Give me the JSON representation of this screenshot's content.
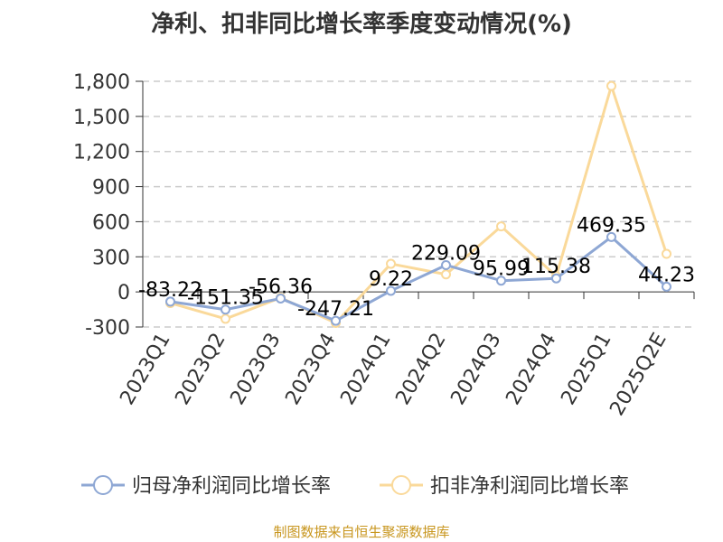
{
  "chart_data": {
    "type": "line",
    "title": "净利、扣非同比增长率季度变动情况(%)",
    "categories": [
      "2023Q1",
      "2023Q2",
      "2023Q3",
      "2023Q4",
      "2024Q1",
      "2024Q2",
      "2024Q3",
      "2024Q4",
      "2025Q1",
      "2025Q2E"
    ],
    "ylim": [
      -300,
      1800
    ],
    "yticks": [
      -300,
      0,
      300,
      600,
      900,
      1200,
      1500,
      1800
    ],
    "ytick_labels": [
      "-300",
      "0",
      "300",
      "600",
      "900",
      "1,200",
      "1,500",
      "1,800"
    ],
    "grid": true,
    "legend_position": "bottom",
    "series": [
      {
        "name": "归母净利润同比增长率",
        "color": "#8ea7d4",
        "values": [
          -83.22,
          -151.35,
          -56.36,
          -247.21,
          9.22,
          229.09,
          95.99,
          115.38,
          469.35,
          44.23
        ],
        "labels": [
          "-83.22",
          "-151.35",
          "-56.36",
          "-247.21",
          "9.22",
          "229.09",
          "95.99",
          "115.38",
          "469.35",
          "44.23"
        ]
      },
      {
        "name": "扣非净利润同比增长率",
        "color": "#fad99a",
        "values": [
          -95,
          -230,
          -50,
          -265,
          240,
          150,
          560,
          135,
          1760,
          325
        ]
      }
    ]
  },
  "credit": "制图数据来自恒生聚源数据库"
}
